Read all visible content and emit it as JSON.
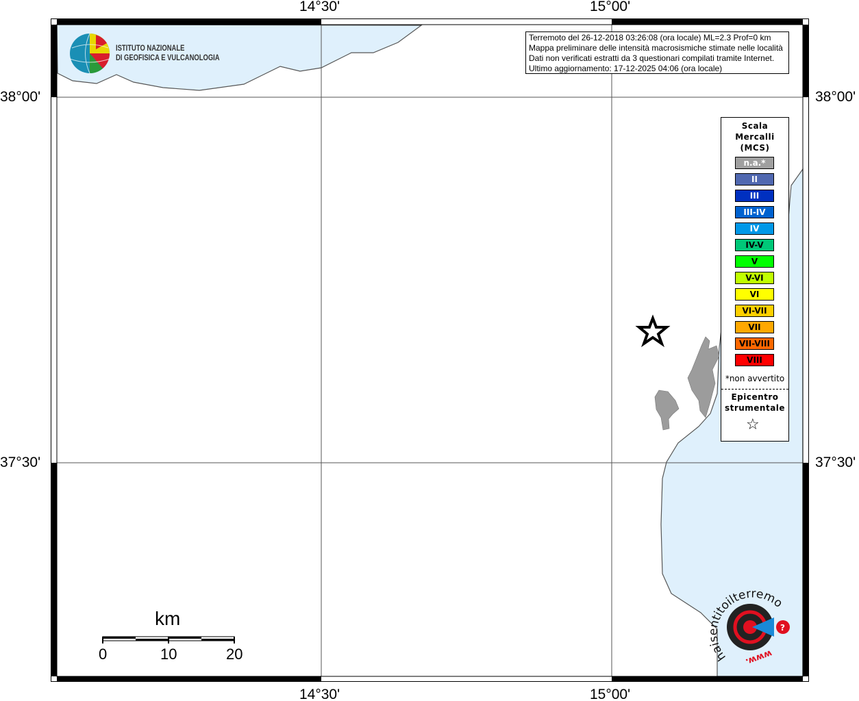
{
  "map": {
    "colors": {
      "sea": "#dff0fc",
      "land": "#ffffff",
      "lake": "#9c9c9c",
      "coastline": "#555555",
      "grid": "#555555"
    },
    "lon_labels": [
      "14°30'",
      "15°00'"
    ],
    "lat_labels": [
      "38°00'",
      "37°30'"
    ],
    "epicenter_icon": "star-outline-icon"
  },
  "logo_ingv": {
    "line1": "ISTITUTO NAZIONALE",
    "line2": "DI GEOFISICA E VULCANOLOGIA"
  },
  "info": {
    "line1": "Terremoto del 26-12-2018 03:26:08 (ora locale) ML=2.3 Prof=0 km",
    "line2": "Mappa preliminare delle intensità macrosismiche stimate nelle località",
    "line3": "Dati non verificati estratti da 3 questionari compilati tramite Internet.",
    "line4": "Ultimo aggiornamento: 17-12-2025 04:06 (ora locale)"
  },
  "legend": {
    "title1": "Scala",
    "title2": "Mercalli",
    "title3": "(MCS)",
    "levels": [
      {
        "label": "n.a.*",
        "color": "#a0a0a0",
        "text": "#ffffff"
      },
      {
        "label": "II",
        "color": "#5068b0",
        "text": "#ffffff"
      },
      {
        "label": "III",
        "color": "#0030c0",
        "text": "#ffffff"
      },
      {
        "label": "III-IV",
        "color": "#0062d0",
        "text": "#ffffff"
      },
      {
        "label": "IV",
        "color": "#0098e8",
        "text": "#ffffff"
      },
      {
        "label": "IV-V",
        "color": "#00c878",
        "text": "#000000"
      },
      {
        "label": "V",
        "color": "#00ff00",
        "text": "#000000"
      },
      {
        "label": "V-VI",
        "color": "#c0ff00",
        "text": "#000000"
      },
      {
        "label": "VI",
        "color": "#ffff00",
        "text": "#000000"
      },
      {
        "label": "VI-VII",
        "color": "#ffd000",
        "text": "#000000"
      },
      {
        "label": "VII",
        "color": "#ffa800",
        "text": "#000000"
      },
      {
        "label": "VII-VIII",
        "color": "#ff6800",
        "text": "#000000"
      },
      {
        "label": "VIII",
        "color": "#ff0000",
        "text": "#000000"
      }
    ],
    "na_note": "*non avvertito",
    "epicenter1": "Epicentro",
    "epicenter2": "strumentale"
  },
  "scalebar": {
    "unit": "km",
    "ticks": [
      "0",
      "10",
      "20"
    ]
  },
  "logo_hsit": {
    "text": "haisentitoilterremoto.it",
    "prefix": "www."
  }
}
